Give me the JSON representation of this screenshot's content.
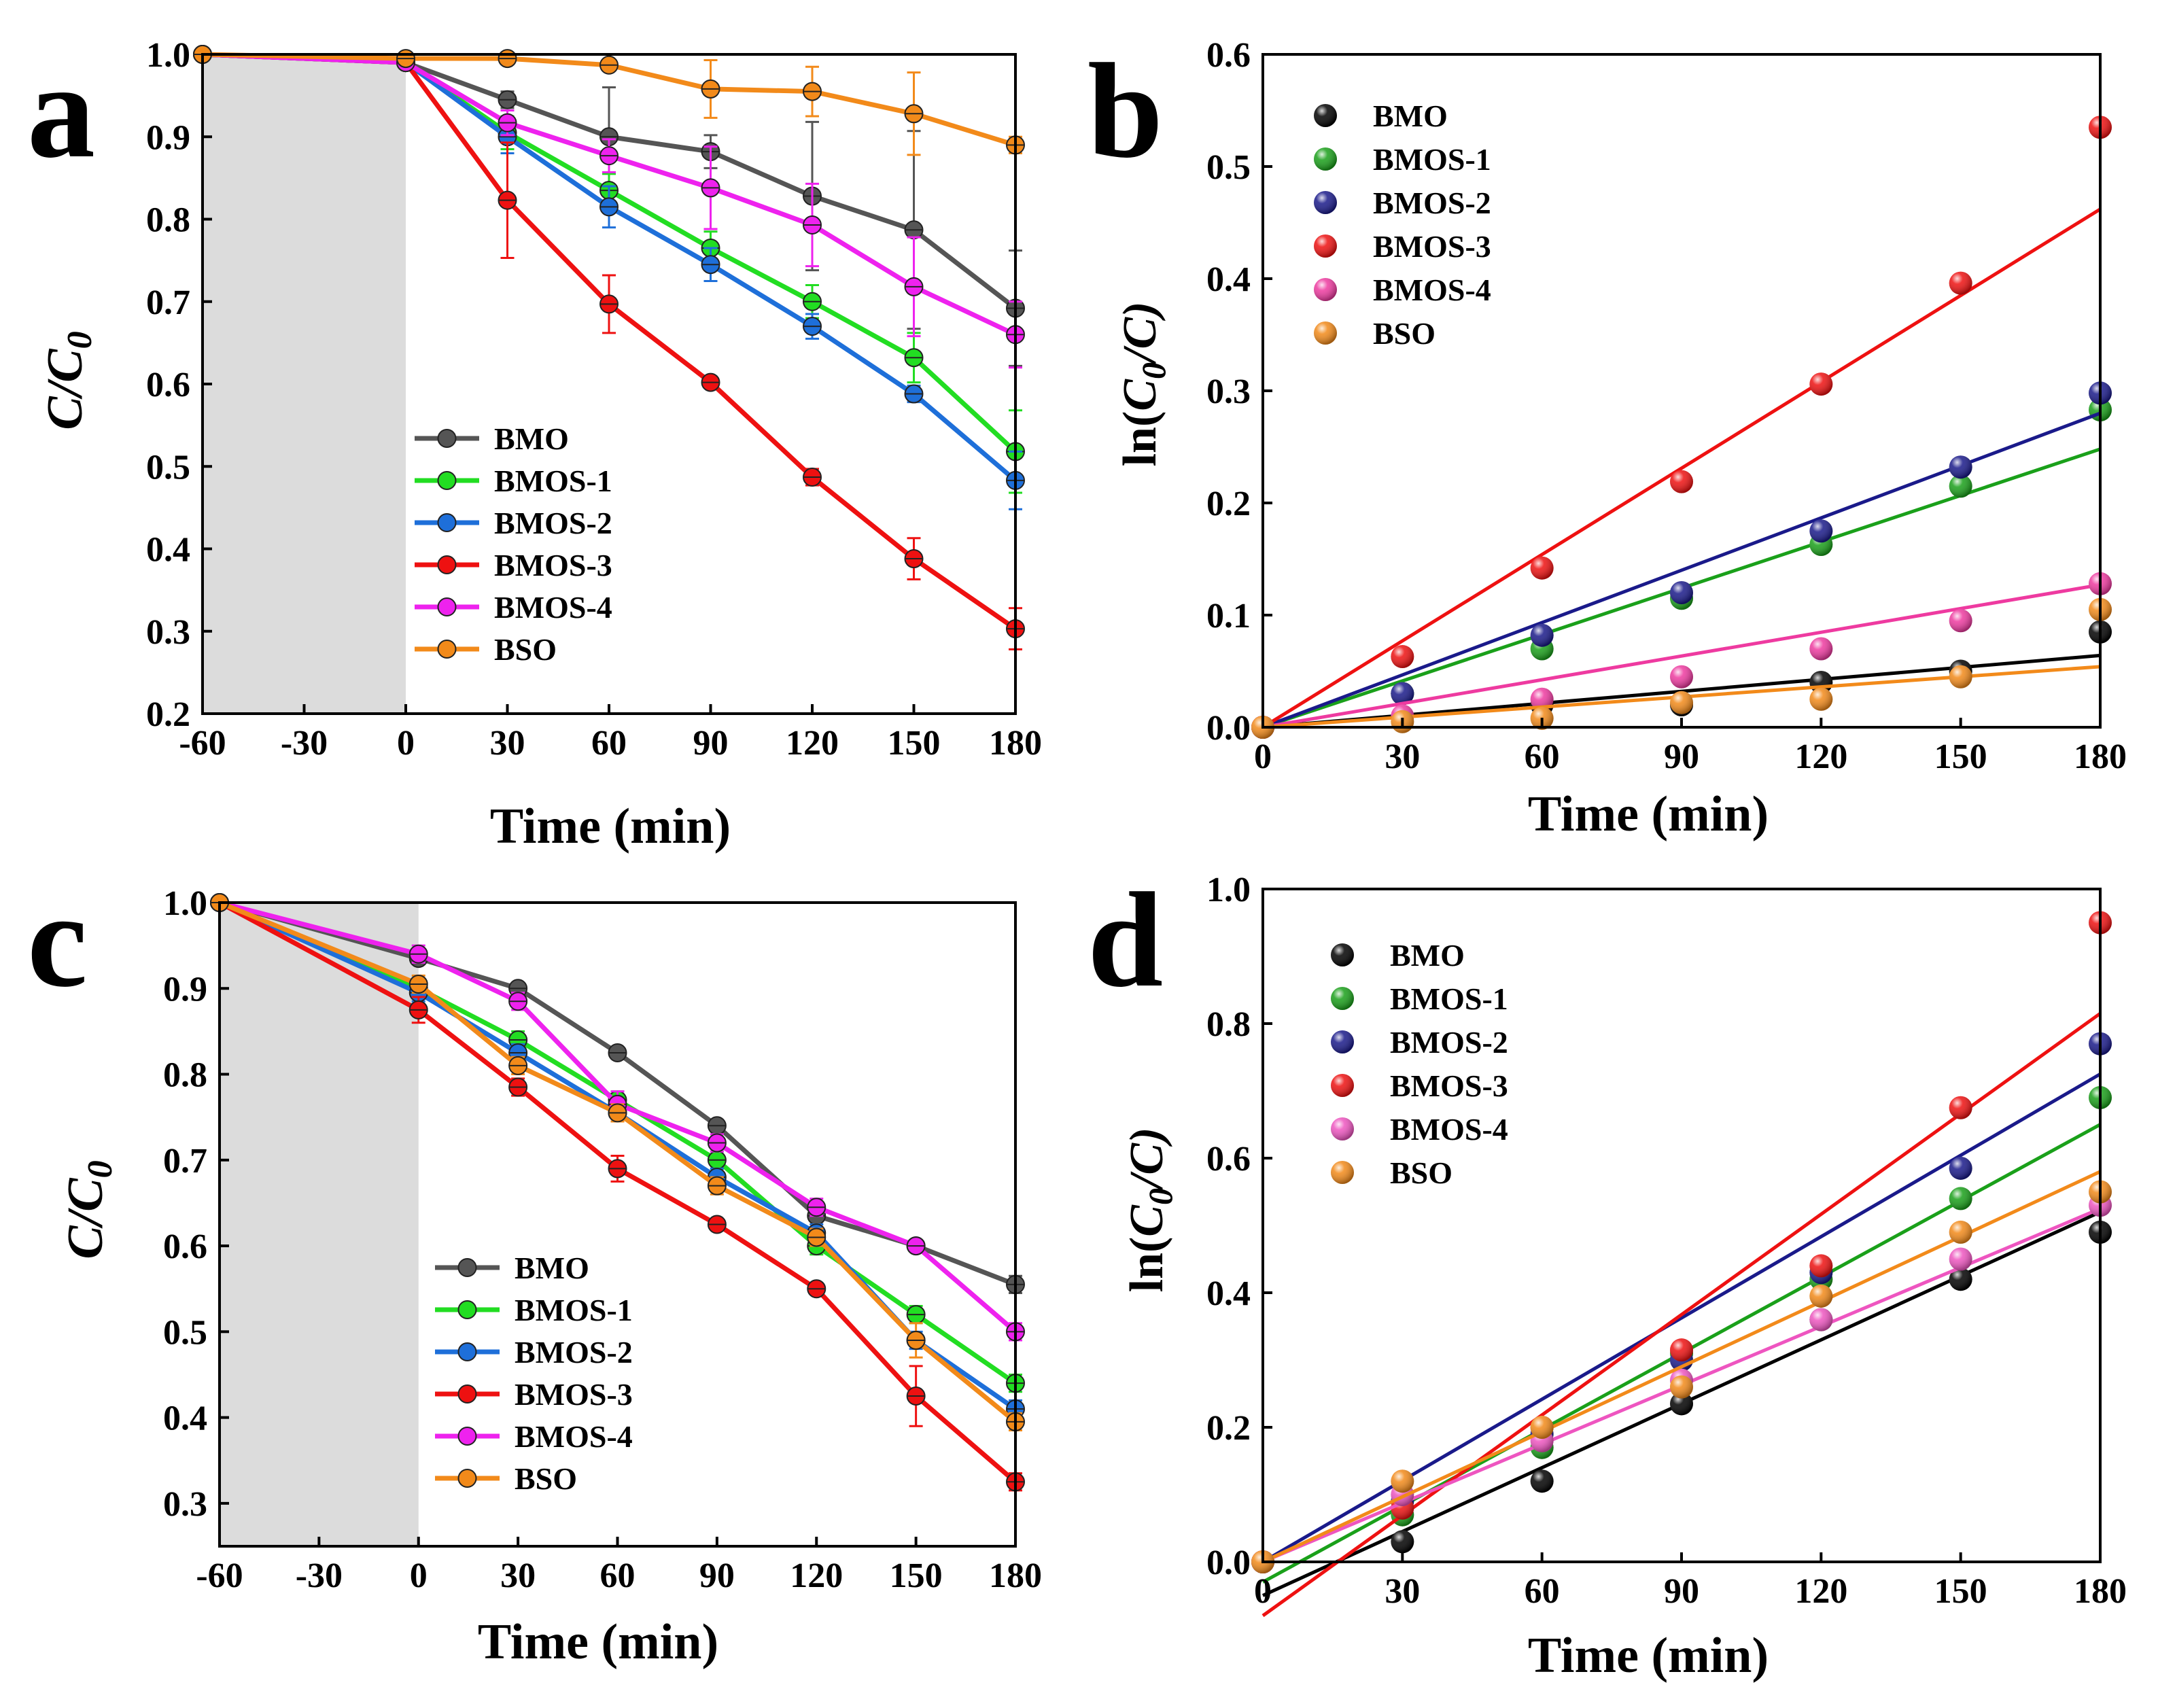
{
  "chart_data": [
    {
      "panel": "a",
      "type": "line",
      "xlabel": "Time (min)",
      "ylabel": "C/C0",
      "xlim": [
        -60,
        180
      ],
      "ylim": [
        0.2,
        1.0
      ],
      "xticks": [
        "-60",
        "-30",
        "0",
        "30",
        "60",
        "90",
        "120",
        "150",
        "180"
      ],
      "yticks": [
        "0.2",
        "0.3",
        "0.4",
        "0.5",
        "0.6",
        "0.7",
        "0.8",
        "0.9",
        "1.0"
      ],
      "dark_region": [
        -60,
        0
      ],
      "legend_position": "lower-left",
      "series": [
        {
          "name": "BMO",
          "color": "#555555",
          "x": [
            -60,
            0,
            30,
            60,
            90,
            120,
            150,
            180
          ],
          "values": [
            1.0,
            0.99,
            0.945,
            0.9,
            0.882,
            0.828,
            0.787,
            0.692
          ],
          "errors": [
            0,
            0.005,
            0.01,
            0.06,
            0.02,
            0.09,
            0.12,
            0.07
          ]
        },
        {
          "name": "BMOS-1",
          "color": "#22dd22",
          "x": [
            -60,
            0,
            30,
            60,
            90,
            120,
            150,
            180
          ],
          "values": [
            1.0,
            0.99,
            0.905,
            0.835,
            0.765,
            0.7,
            0.632,
            0.518
          ],
          "errors": [
            0,
            0.005,
            0.02,
            0.02,
            0.02,
            0.02,
            0.03,
            0.05
          ]
        },
        {
          "name": "BMOS-2",
          "color": "#1e6fd9",
          "x": [
            -60,
            0,
            30,
            60,
            90,
            120,
            150,
            180
          ],
          "values": [
            1.0,
            0.99,
            0.9,
            0.815,
            0.745,
            0.67,
            0.588,
            0.483
          ],
          "errors": [
            0,
            0.005,
            0.02,
            0.025,
            0.02,
            0.015,
            0.01,
            0.035
          ]
        },
        {
          "name": "BMOS-3",
          "color": "#ee1111",
          "x": [
            -60,
            0,
            30,
            60,
            90,
            120,
            150,
            180
          ],
          "values": [
            1.0,
            0.99,
            0.823,
            0.697,
            0.602,
            0.487,
            0.388,
            0.303
          ],
          "errors": [
            0,
            0.005,
            0.07,
            0.035,
            0.005,
            0.01,
            0.025,
            0.025
          ]
        },
        {
          "name": "BMOS-4",
          "color": "#ee22ee",
          "x": [
            -60,
            0,
            30,
            60,
            90,
            120,
            150,
            180
          ],
          "values": [
            1.0,
            0.99,
            0.917,
            0.877,
            0.838,
            0.793,
            0.718,
            0.66
          ],
          "errors": [
            0,
            0.005,
            0.015,
            0.02,
            0.05,
            0.05,
            0.06,
            0.04
          ]
        },
        {
          "name": "BSO",
          "color": "#f28a1a",
          "x": [
            -60,
            0,
            30,
            60,
            90,
            120,
            150,
            180
          ],
          "values": [
            1.0,
            0.995,
            0.995,
            0.987,
            0.958,
            0.955,
            0.928,
            0.89
          ],
          "errors": [
            0,
            0.003,
            0.005,
            0.005,
            0.035,
            0.03,
            0.05,
            0.01
          ]
        }
      ]
    },
    {
      "panel": "b",
      "type": "scatter",
      "xlabel": "Time (min)",
      "ylabel": "ln(C0/C)",
      "xlim": [
        0,
        180
      ],
      "ylim": [
        0,
        0.6
      ],
      "xticks": [
        "0",
        "30",
        "60",
        "90",
        "120",
        "150",
        "180"
      ],
      "yticks": [
        "0.0",
        "0.1",
        "0.2",
        "0.3",
        "0.4",
        "0.5",
        "0.6"
      ],
      "legend_position": "top-left",
      "series": [
        {
          "name": "BMO",
          "color": "#000000",
          "x": [
            0,
            30,
            60,
            90,
            120,
            150,
            180
          ],
          "values": [
            0.0,
            0.03,
            0.02,
            0.02,
            0.04,
            0.05,
            0.085
          ],
          "fit": [
            0,
            0.064
          ]
        },
        {
          "name": "BMOS-1",
          "color": "#1aa01a",
          "x": [
            0,
            30,
            60,
            90,
            120,
            150,
            180
          ],
          "values": [
            0.0,
            0.03,
            0.07,
            0.115,
            0.163,
            0.215,
            0.283
          ],
          "fit": [
            0,
            0.248
          ]
        },
        {
          "name": "BMOS-2",
          "color": "#1a1a8a",
          "x": [
            0,
            30,
            60,
            90,
            120,
            150,
            180
          ],
          "values": [
            0.0,
            0.03,
            0.082,
            0.12,
            0.175,
            0.232,
            0.298
          ],
          "fit": [
            0,
            0.28
          ]
        },
        {
          "name": "BMOS-3",
          "color": "#ee1111",
          "x": [
            0,
            30,
            60,
            90,
            120,
            150,
            180
          ],
          "values": [
            0.0,
            0.063,
            0.142,
            0.219,
            0.306,
            0.396,
            0.535
          ],
          "fit": [
            0,
            0.462
          ]
        },
        {
          "name": "BMOS-4",
          "color": "#ee3aa0",
          "x": [
            0,
            30,
            60,
            90,
            120,
            150,
            180
          ],
          "values": [
            0.0,
            0.01,
            0.025,
            0.045,
            0.07,
            0.095,
            0.128
          ],
          "fit": [
            0,
            0.127
          ]
        },
        {
          "name": "BSO",
          "color": "#f28a1a",
          "x": [
            0,
            30,
            60,
            90,
            120,
            150,
            180
          ],
          "values": [
            0.0,
            0.005,
            0.008,
            0.022,
            0.025,
            0.045,
            0.105
          ],
          "fit": [
            0,
            0.054
          ]
        }
      ]
    },
    {
      "panel": "c",
      "type": "line",
      "xlabel": "Time (min)",
      "ylabel": "C/C0",
      "xlim": [
        -60,
        180
      ],
      "ylim": [
        0.25,
        1.0
      ],
      "xticks": [
        "-60",
        "-30",
        "0",
        "30",
        "60",
        "90",
        "120",
        "150",
        "180"
      ],
      "yticks": [
        "0.3",
        "0.4",
        "0.5",
        "0.6",
        "0.7",
        "0.8",
        "0.9",
        "1.0"
      ],
      "dark_region": [
        -60,
        0
      ],
      "legend_position": "lower-left",
      "series": [
        {
          "name": "BMO",
          "color": "#555555",
          "x": [
            -60,
            0,
            30,
            60,
            90,
            120,
            150,
            180
          ],
          "values": [
            1.0,
            0.935,
            0.9,
            0.825,
            0.74,
            0.635,
            0.6,
            0.555
          ],
          "errors": [
            0,
            0.005,
            0.005,
            0.005,
            0.005,
            0.005,
            0.005,
            0.01
          ]
        },
        {
          "name": "BMOS-1",
          "color": "#22dd22",
          "x": [
            -60,
            0,
            30,
            60,
            90,
            120,
            150,
            180
          ],
          "values": [
            1.0,
            0.9,
            0.84,
            0.77,
            0.7,
            0.6,
            0.52,
            0.44
          ],
          "errors": [
            0,
            0.01,
            0.01,
            0.01,
            0.01,
            0.01,
            0.01,
            0.01
          ]
        },
        {
          "name": "BMOS-2",
          "color": "#1e6fd9",
          "x": [
            -60,
            0,
            30,
            60,
            90,
            120,
            150,
            180
          ],
          "values": [
            1.0,
            0.895,
            0.825,
            0.755,
            0.68,
            0.615,
            0.49,
            0.41
          ],
          "errors": [
            0,
            0.01,
            0.01,
            0.01,
            0.01,
            0.01,
            0.01,
            0.01
          ]
        },
        {
          "name": "BMOS-3",
          "color": "#ee1111",
          "x": [
            -60,
            0,
            30,
            60,
            90,
            120,
            150,
            180
          ],
          "values": [
            1.0,
            0.875,
            0.785,
            0.69,
            0.625,
            0.55,
            0.425,
            0.325
          ],
          "errors": [
            0,
            0.015,
            0.01,
            0.015,
            0.005,
            0.005,
            0.035,
            0.01
          ]
        },
        {
          "name": "BMOS-4",
          "color": "#ee22ee",
          "x": [
            -60,
            0,
            30,
            60,
            90,
            120,
            150,
            180
          ],
          "values": [
            1.0,
            0.94,
            0.885,
            0.765,
            0.72,
            0.645,
            0.6,
            0.5
          ],
          "errors": [
            0,
            0.01,
            0.01,
            0.015,
            0.01,
            0.01,
            0.005,
            0.01
          ]
        },
        {
          "name": "BSO",
          "color": "#f28a1a",
          "x": [
            -60,
            0,
            30,
            60,
            90,
            120,
            150,
            180
          ],
          "values": [
            1.0,
            0.905,
            0.81,
            0.755,
            0.67,
            0.61,
            0.49,
            0.395
          ],
          "errors": [
            0,
            0.01,
            0.01,
            0.01,
            0.01,
            0.01,
            0.02,
            0.01
          ]
        }
      ]
    },
    {
      "panel": "d",
      "type": "scatter",
      "xlabel": "Time (min)",
      "ylabel": "ln(C0/C)",
      "xlim": [
        0,
        180
      ],
      "ylim": [
        0,
        1.0
      ],
      "xticks": [
        "0",
        "30",
        "60",
        "90",
        "120",
        "150",
        "180"
      ],
      "yticks": [
        "0.0",
        "0.2",
        "0.4",
        "0.6",
        "0.8",
        "1.0"
      ],
      "legend_position": "top-left",
      "series": [
        {
          "name": "BMO",
          "color": "#000000",
          "x": [
            0,
            30,
            60,
            90,
            120,
            150,
            180
          ],
          "values": [
            0.0,
            0.03,
            0.12,
            0.235,
            0.36,
            0.42,
            0.49
          ],
          "fit": [
            -0.05,
            0.52
          ]
        },
        {
          "name": "BMOS-1",
          "color": "#1aa01a",
          "x": [
            0,
            30,
            60,
            90,
            120,
            150,
            180
          ],
          "values": [
            0.0,
            0.07,
            0.17,
            0.31,
            0.42,
            0.54,
            0.69
          ],
          "fit": [
            -0.03,
            0.65
          ]
        },
        {
          "name": "BMOS-2",
          "color": "#1a1a8a",
          "x": [
            0,
            30,
            60,
            90,
            120,
            150,
            180
          ],
          "values": [
            0.0,
            0.09,
            0.19,
            0.3,
            0.43,
            0.585,
            0.77
          ],
          "fit": [
            0.0,
            0.725
          ]
        },
        {
          "name": "BMOS-3",
          "color": "#ee1111",
          "x": [
            0,
            30,
            60,
            90,
            120,
            150,
            180
          ],
          "values": [
            0.0,
            0.08,
            0.2,
            0.315,
            0.44,
            0.675,
            0.95
          ],
          "fit": [
            -0.08,
            0.815
          ]
        },
        {
          "name": "BMOS-4",
          "color": "#ee55c0",
          "x": [
            0,
            30,
            60,
            90,
            120,
            150,
            180
          ],
          "values": [
            0.0,
            0.1,
            0.18,
            0.27,
            0.36,
            0.45,
            0.53
          ],
          "fit": [
            0.0,
            0.525
          ]
        },
        {
          "name": "BSO",
          "color": "#f28a1a",
          "x": [
            0,
            30,
            60,
            90,
            120,
            150,
            180
          ],
          "values": [
            0.0,
            0.12,
            0.2,
            0.26,
            0.395,
            0.49,
            0.55
          ],
          "fit": [
            0.0,
            0.58
          ]
        }
      ]
    }
  ],
  "panels": {
    "a": {
      "letter": "a",
      "xlabel": "Time (min)",
      "ylabel_main": "C/C",
      "ylabel_sub": "0"
    },
    "b": {
      "letter": "b",
      "xlabel": "Time (min)",
      "ylabel_pre": "ln(",
      "ylabel_c": "C",
      "ylabel_sub": "0",
      "ylabel_post": "/C)"
    },
    "c": {
      "letter": "c",
      "xlabel": "Time (min)",
      "ylabel_main": "C/C",
      "ylabel_sub": "0"
    },
    "d": {
      "letter": "d",
      "xlabel": "Time (min)",
      "ylabel_pre": "ln(",
      "ylabel_c": "C",
      "ylabel_sub": "0",
      "ylabel_post": "/C)"
    }
  }
}
